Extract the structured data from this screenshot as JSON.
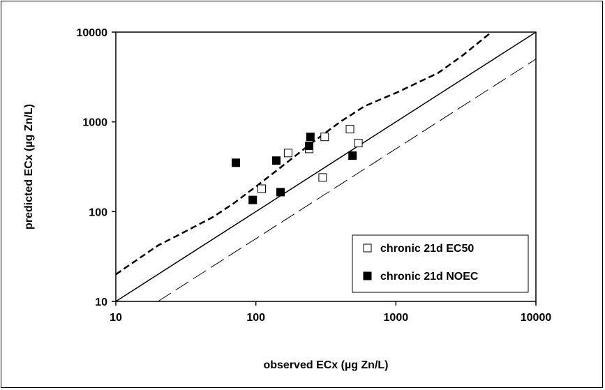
{
  "chart_data": {
    "type": "scatter",
    "xscale": "log",
    "yscale": "log",
    "xlim": [
      10,
      10000
    ],
    "ylim": [
      10,
      10000
    ],
    "xlabel": "observed ECx (µg Zn/L)",
    "ylabel": "predicted ECx (µg Zn/L)",
    "xticks": [
      "10",
      "100",
      "1000",
      "10000"
    ],
    "yticks": [
      "10",
      "100",
      "1000",
      "10000"
    ],
    "grid": false,
    "legend_position": "bottom-right",
    "series": [
      {
        "name": "chronic 21d EC50",
        "marker": "open-square",
        "color": "#000000",
        "points": [
          {
            "x": 110,
            "y": 180
          },
          {
            "x": 170,
            "y": 450
          },
          {
            "x": 240,
            "y": 500
          },
          {
            "x": 300,
            "y": 240
          },
          {
            "x": 310,
            "y": 680
          },
          {
            "x": 470,
            "y": 830
          },
          {
            "x": 540,
            "y": 580
          }
        ]
      },
      {
        "name": "chronic 21d NOEC",
        "marker": "filled-square",
        "color": "#000000",
        "points": [
          {
            "x": 72,
            "y": 350
          },
          {
            "x": 95,
            "y": 135
          },
          {
            "x": 140,
            "y": 370
          },
          {
            "x": 150,
            "y": 165
          },
          {
            "x": 240,
            "y": 540
          },
          {
            "x": 245,
            "y": 680
          },
          {
            "x": 490,
            "y": 420
          }
        ]
      }
    ],
    "reference_lines": [
      {
        "style": "solid",
        "points": [
          [
            10,
            10
          ],
          [
            10000,
            10000
          ]
        ]
      },
      {
        "style": "long-dash",
        "points": [
          [
            20,
            10
          ],
          [
            10000,
            5000
          ]
        ]
      },
      {
        "style": "short-dash-bold",
        "points": [
          [
            10,
            20
          ],
          [
            20,
            42
          ],
          [
            30,
            58
          ],
          [
            50,
            88
          ],
          [
            70,
            125
          ],
          [
            100,
            190
          ],
          [
            150,
            310
          ],
          [
            250,
            580
          ],
          [
            400,
            1000
          ],
          [
            600,
            1500
          ],
          [
            1000,
            2100
          ],
          [
            2000,
            3500
          ],
          [
            3000,
            5500
          ],
          [
            5000,
            10500
          ]
        ]
      }
    ]
  }
}
